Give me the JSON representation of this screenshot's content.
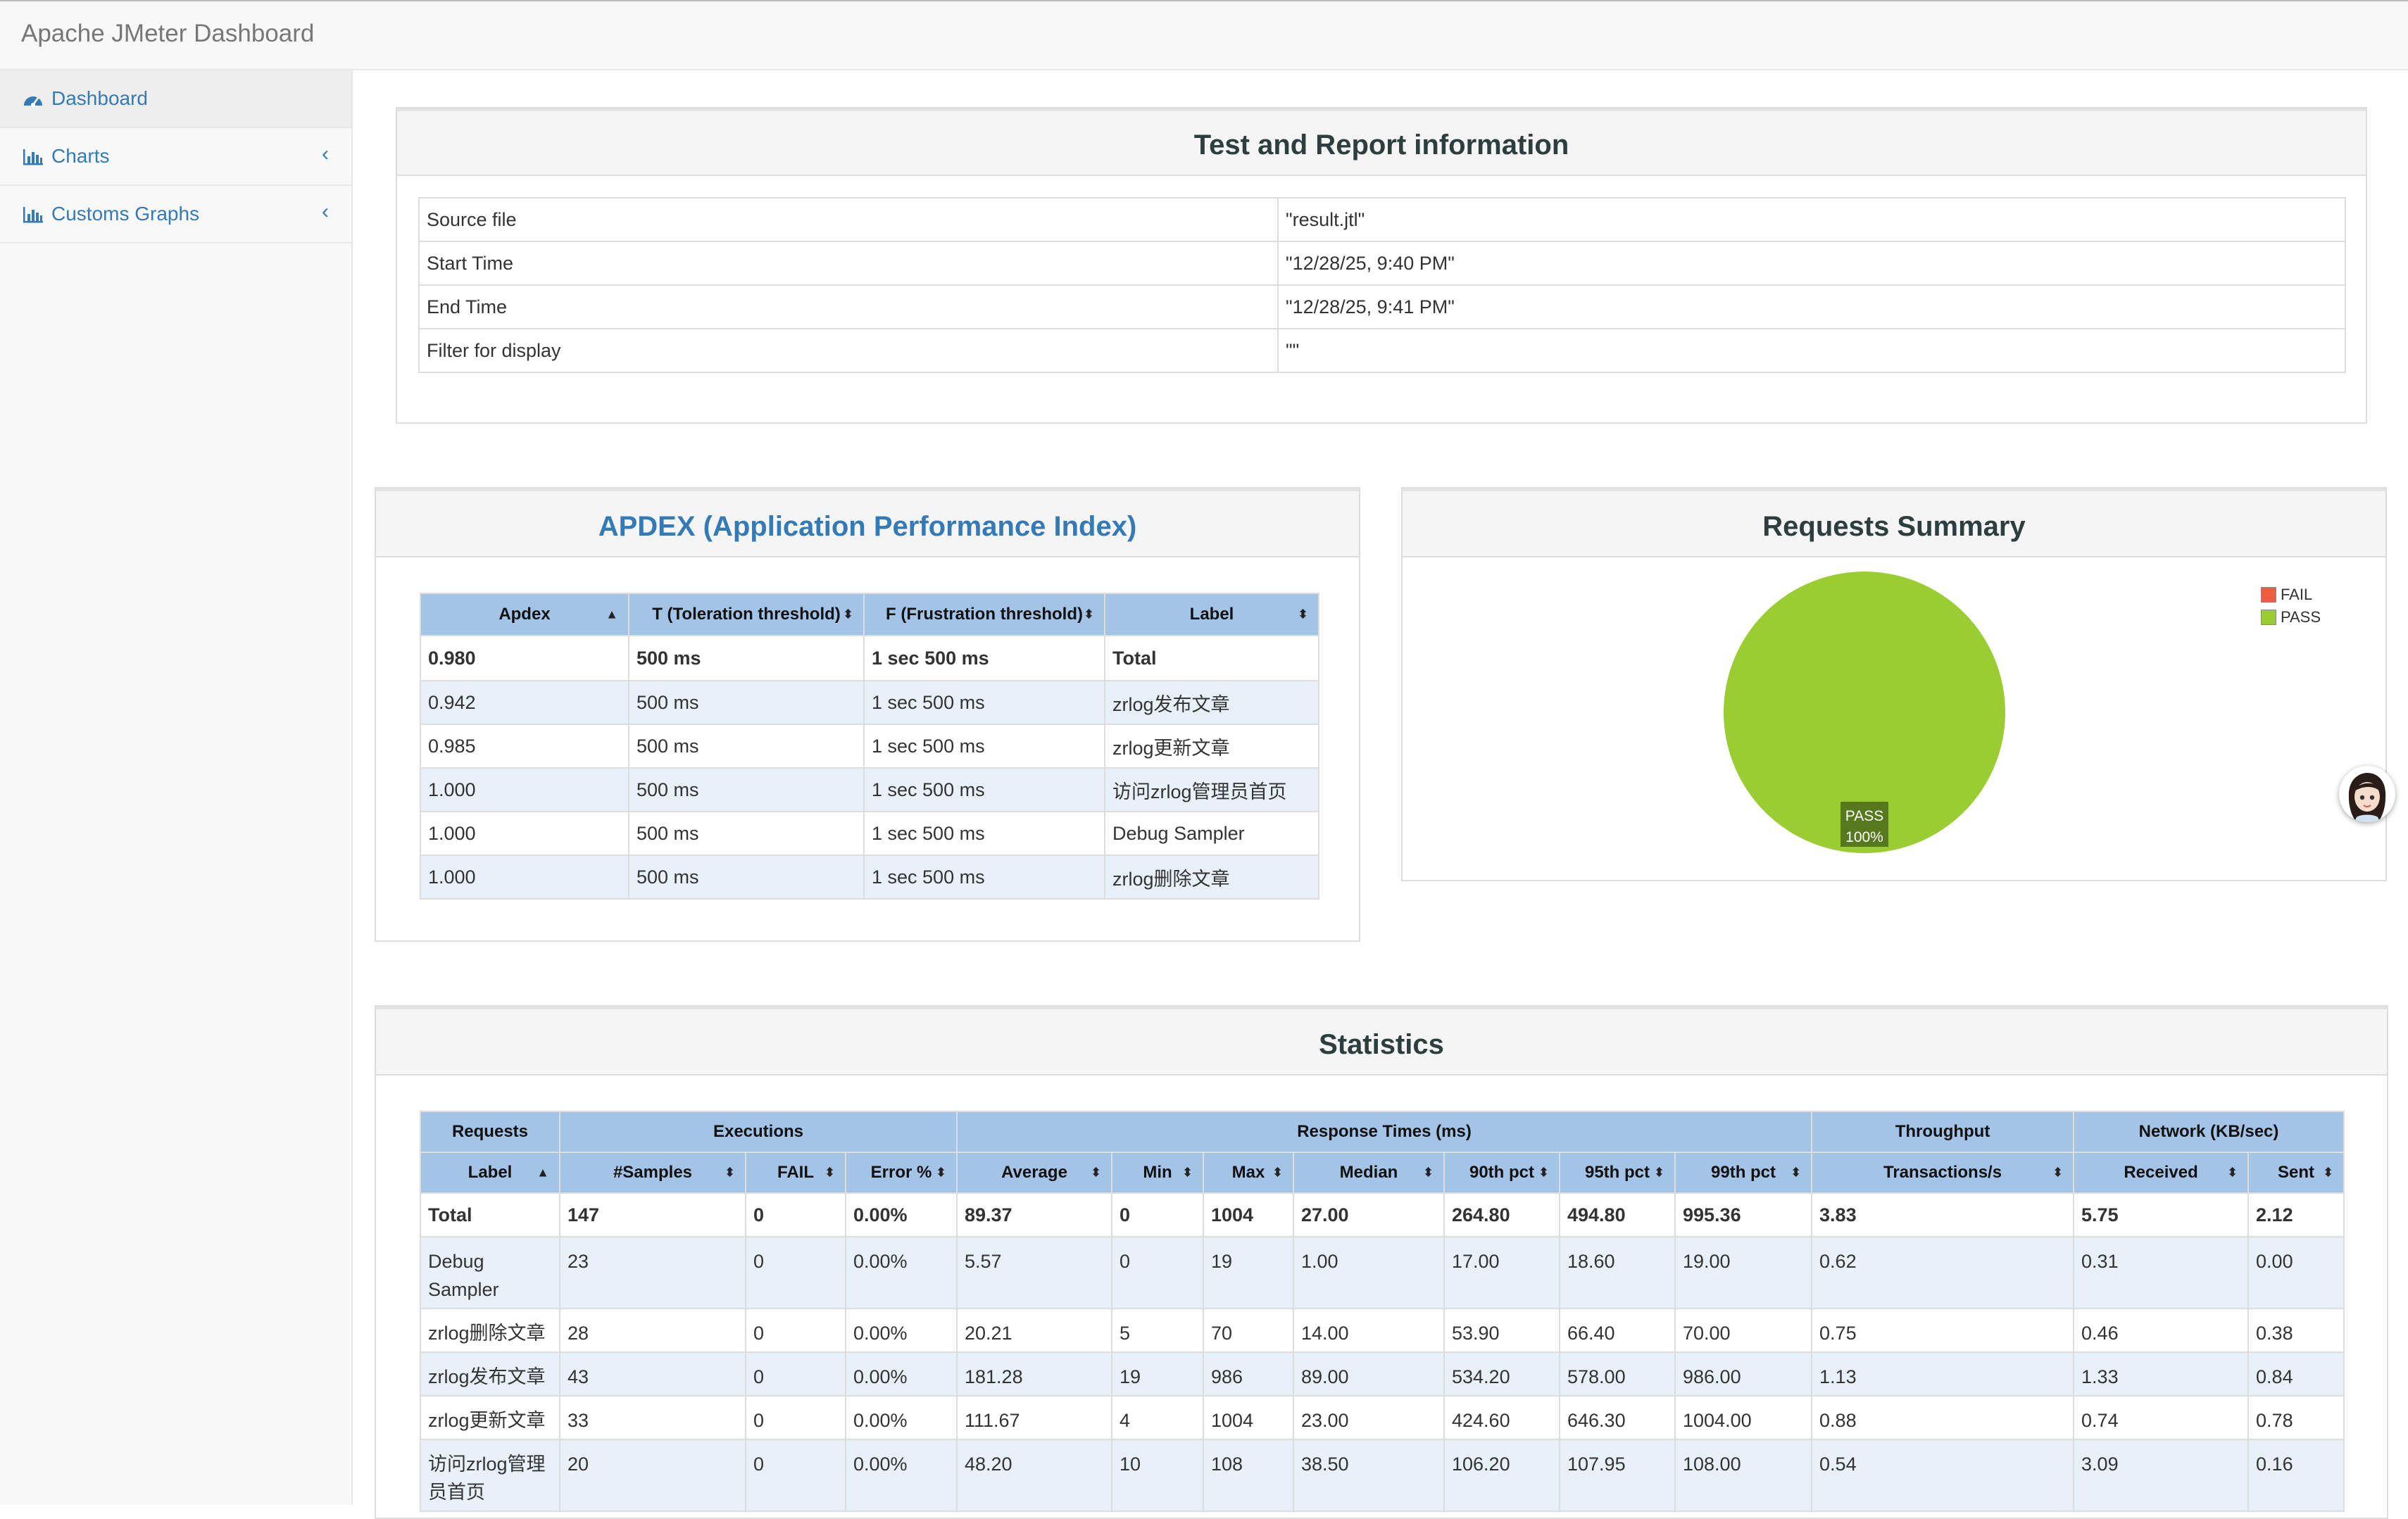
{
  "app": {
    "title": "Apache JMeter Dashboard"
  },
  "sidebar": {
    "items": [
      {
        "label": "Dashboard",
        "icon": "dashboard-icon",
        "active": true
      },
      {
        "label": "Charts",
        "icon": "bar-chart-icon",
        "chevron": "‹"
      },
      {
        "label": "Customs Graphs",
        "icon": "bar-chart-icon",
        "chevron": "‹"
      }
    ]
  },
  "report_info": {
    "title": "Test and Report information",
    "rows": [
      [
        "Source file",
        "\"result.jtl\""
      ],
      [
        "Start Time",
        "\"12/28/25, 9:40 PM\""
      ],
      [
        "End Time",
        "\"12/28/25, 9:41 PM\""
      ],
      [
        "Filter for display",
        "\"\""
      ]
    ]
  },
  "apdex": {
    "title": "APDEX (Application Performance Index)",
    "headers": [
      "Apdex",
      "T (Toleration threshold)",
      "F (Frustration threshold)",
      "Label"
    ],
    "rows": [
      [
        "0.980",
        "500 ms",
        "1 sec 500 ms",
        "Total"
      ],
      [
        "0.942",
        "500 ms",
        "1 sec 500 ms",
        "zrlog发布文章"
      ],
      [
        "0.985",
        "500 ms",
        "1 sec 500 ms",
        "zrlog更新文章"
      ],
      [
        "1.000",
        "500 ms",
        "1 sec 500 ms",
        "访问zrlog管理员首页"
      ],
      [
        "1.000",
        "500 ms",
        "1 sec 500 ms",
        "Debug Sampler"
      ],
      [
        "1.000",
        "500 ms",
        "1 sec 500 ms",
        "zrlog删除文章"
      ]
    ]
  },
  "summary": {
    "title": "Requests Summary",
    "legend": [
      {
        "label": "FAIL",
        "color": "#f15b40"
      },
      {
        "label": "PASS",
        "color": "#9acd32"
      }
    ],
    "pie_label": "PASS",
    "pie_pct": "100%"
  },
  "chart_data": {
    "type": "pie",
    "title": "Requests Summary",
    "slices": [
      {
        "label": "FAIL",
        "value": 0,
        "color": "#f15b40"
      },
      {
        "label": "PASS",
        "value": 100,
        "color": "#9acd32"
      }
    ],
    "legend_position": "top-right"
  },
  "statistics": {
    "title": "Statistics",
    "groups": [
      "Requests",
      "Executions",
      "Response Times (ms)",
      "Throughput",
      "Network (KB/sec)"
    ],
    "columns": [
      "Label",
      "#Samples",
      "FAIL",
      "Error %",
      "Average",
      "Min",
      "Max",
      "Median",
      "90th pct",
      "95th pct",
      "99th pct",
      "Transactions/s",
      "Received",
      "Sent"
    ],
    "rows": [
      [
        "Total",
        "147",
        "0",
        "0.00%",
        "89.37",
        "0",
        "1004",
        "27.00",
        "264.80",
        "494.80",
        "995.36",
        "3.83",
        "5.75",
        "2.12"
      ],
      [
        "Debug Sampler",
        "23",
        "0",
        "0.00%",
        "5.57",
        "0",
        "19",
        "1.00",
        "17.00",
        "18.60",
        "19.00",
        "0.62",
        "0.31",
        "0.00"
      ],
      [
        "zrlog删除文章",
        "28",
        "0",
        "0.00%",
        "20.21",
        "5",
        "70",
        "14.00",
        "53.90",
        "66.40",
        "70.00",
        "0.75",
        "0.46",
        "0.38"
      ],
      [
        "zrlog发布文章",
        "43",
        "0",
        "0.00%",
        "181.28",
        "19",
        "986",
        "89.00",
        "534.20",
        "578.00",
        "986.00",
        "1.13",
        "1.33",
        "0.84"
      ],
      [
        "zrlog更新文章",
        "33",
        "0",
        "0.00%",
        "111.67",
        "4",
        "1004",
        "23.00",
        "424.60",
        "646.30",
        "1004.00",
        "0.88",
        "0.74",
        "0.78"
      ],
      [
        "访问zrlog管理员首页",
        "20",
        "0",
        "0.00%",
        "48.20",
        "10",
        "108",
        "38.50",
        "106.20",
        "107.95",
        "108.00",
        "0.54",
        "3.09",
        "0.16"
      ]
    ]
  }
}
